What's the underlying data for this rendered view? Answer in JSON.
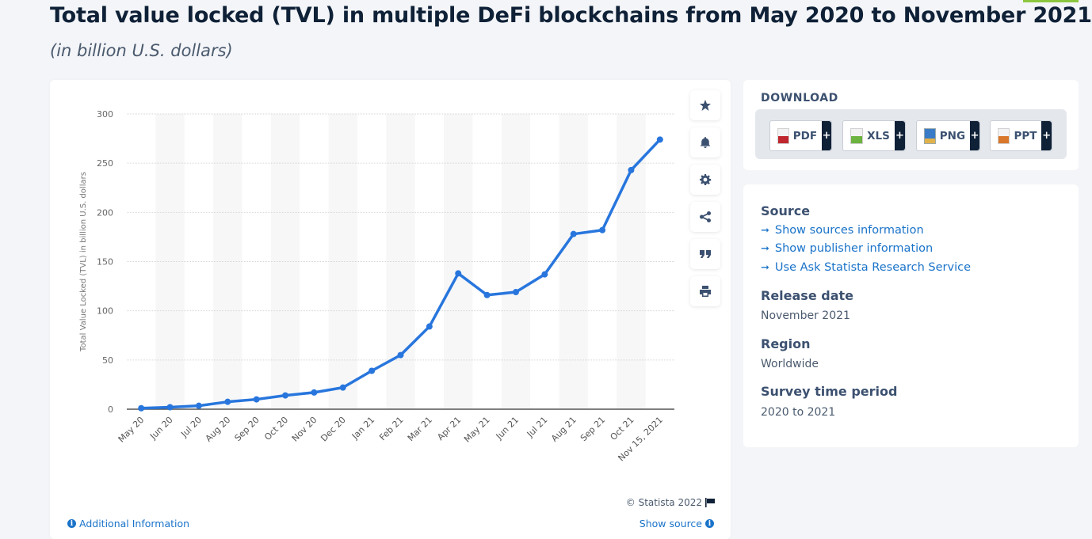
{
  "header": {
    "title": "Total value locked (TVL) in multiple DeFi blockchains from May 2020 to November 2021",
    "subtitle": "(in billion U.S. dollars)"
  },
  "toolbar": {
    "buttons": [
      {
        "name": "favorite",
        "icon": "star-icon"
      },
      {
        "name": "notification",
        "icon": "bell-icon"
      },
      {
        "name": "settings",
        "icon": "gear-icon"
      },
      {
        "name": "share",
        "icon": "share-icon"
      },
      {
        "name": "cite",
        "icon": "quote-icon"
      },
      {
        "name": "print",
        "icon": "print-icon"
      }
    ]
  },
  "chart_footer": {
    "copyright": "© Statista 2022",
    "additional_info": "Additional Information",
    "show_source": "Show source"
  },
  "download": {
    "title": "DOWNLOAD",
    "buttons": [
      {
        "label": "PDF",
        "color": "#c0262d"
      },
      {
        "label": "XLS",
        "color": "#6cb33f"
      },
      {
        "label": "PNG",
        "color": "#3a7bc8"
      },
      {
        "label": "PPT",
        "color": "#d9772b"
      }
    ],
    "plus": "+"
  },
  "meta": {
    "source_heading": "Source",
    "links": [
      "Show sources information",
      "Show publisher information",
      "Use Ask Statista Research Service"
    ],
    "arrow": "➞",
    "release_heading": "Release date",
    "release_value": "November 2021",
    "region_heading": "Region",
    "region_value": "Worldwide",
    "period_heading": "Survey time period",
    "period_value": "2020 to 2021"
  },
  "chart_data": {
    "type": "line",
    "title": "Total value locked (TVL) in multiple DeFi blockchains from May 2020 to November 2021",
    "subtitle": "(in billion U.S. dollars)",
    "xlabel": "",
    "ylabel": "Total Value Locked (TVL) in billion U.S. dollars",
    "ylim": [
      0,
      300
    ],
    "yticks": [
      0,
      50,
      100,
      150,
      200,
      250,
      300
    ],
    "grid": true,
    "legend": "none",
    "line_color": "#2876dd",
    "categories": [
      "May 20",
      "Jun 20",
      "Jul 20",
      "Aug 20",
      "Sep 20",
      "Oct 20",
      "Nov 20",
      "Dec 20",
      "Jan 21",
      "Feb 21",
      "Mar 21",
      "Apr 21",
      "May 21",
      "Jun 21",
      "Jul 21",
      "Aug 21",
      "Sep 21",
      "Oct 21",
      "Nov 15, 2021"
    ],
    "series": [
      {
        "name": "TVL",
        "values": [
          1.0,
          2.0,
          3.5,
          7.5,
          10.0,
          14.0,
          17.0,
          22.0,
          39.0,
          55.0,
          84.0,
          138.0,
          116.0,
          119.0,
          137.0,
          178.0,
          182.0,
          243.0,
          274.0
        ]
      }
    ]
  }
}
